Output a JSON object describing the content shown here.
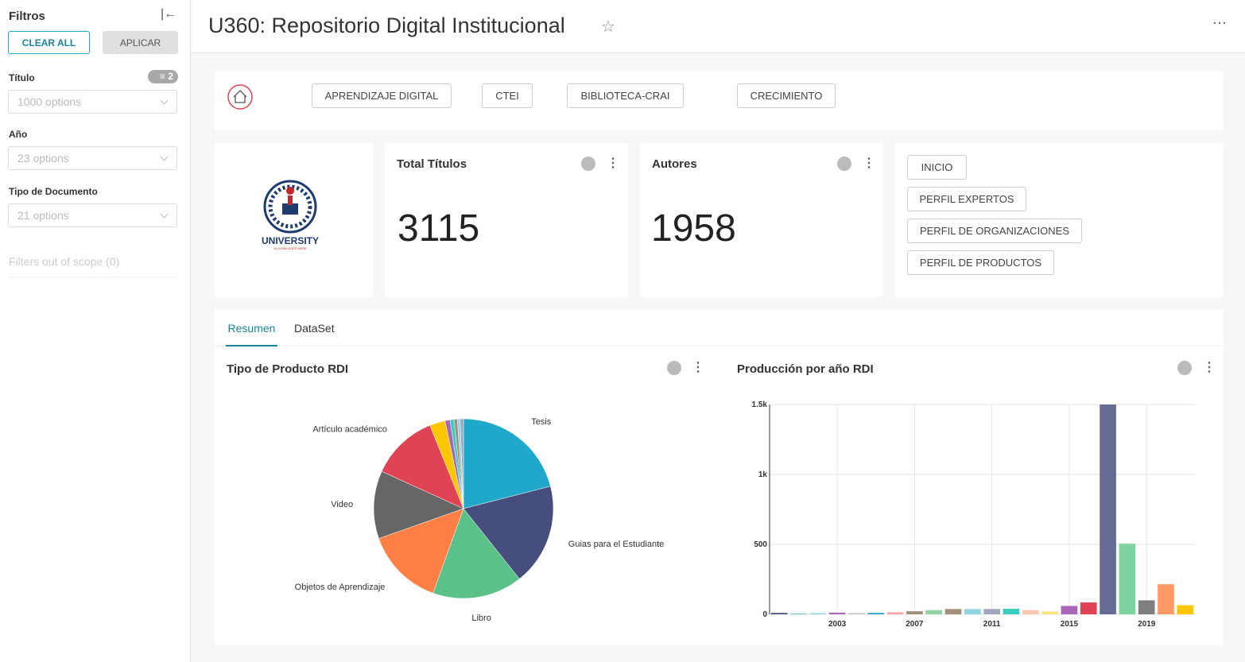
{
  "sidebar": {
    "title": "Filtros",
    "buttons": [
      "CLEAR ALL",
      "APLICAR"
    ],
    "filters": [
      {
        "label": "Título",
        "placeholder": "1000 options",
        "badge": 2
      },
      {
        "label": "Año",
        "placeholder": "23 options"
      },
      {
        "label": "Tipo de Documento",
        "placeholder": "21 options"
      }
    ],
    "out_of_scope": "Filters out of scope (0)"
  },
  "header": {
    "title": "U360: Repositorio Digital Institucional"
  },
  "nav": [
    "APRENDIZAJE DIGITAL",
    "CTEI",
    "BIBLIOTECA-CRAI",
    "CRECIMIENTO"
  ],
  "logo": {
    "name": "UNIVERSITY",
    "slogan": "SLOGAN GOES HERE"
  },
  "kpis": [
    {
      "title": "Total Títulos",
      "value": 3115
    },
    {
      "title": "Autores",
      "value": 1958
    }
  ],
  "links": [
    "INICIO",
    "PERFIL EXPERTOS",
    "PERFIL DE ORGANIZACIONES",
    "PERFIL DE PRODUCTOS"
  ],
  "tabs": [
    "Resumen",
    "DataSet"
  ],
  "chart_data": [
    {
      "type": "pie",
      "title": "Tipo de Producto RDI",
      "categories": [
        "Tesis",
        "Guias para el Estudiante",
        "Libro",
        "Objetos de Aprendizaje",
        "Video",
        "Artículo académico",
        null,
        null,
        null,
        null,
        null,
        null
      ],
      "values": [
        21,
        18.3,
        16.2,
        14.1,
        12.2,
        12.1,
        2.8,
        0.9,
        0.7,
        0.6,
        0.5,
        0.6
      ],
      "colors": [
        "#1fa8c9",
        "#454e7c",
        "#5ac189",
        "#ff7f44",
        "#666666",
        "#e04355",
        "#fcc700",
        "#a868b7",
        "#3cccc2",
        "#a38f79",
        "#8fd3e4",
        "#a1a6bd"
      ]
    },
    {
      "type": "bar",
      "title": "Producción por año RDI",
      "x": [
        2000,
        2001,
        2002,
        2003,
        2004,
        2005,
        2006,
        2007,
        2008,
        2009,
        2010,
        2011,
        2012,
        2013,
        2014,
        2015,
        2016,
        2017,
        2018,
        2019,
        2020,
        2021
      ],
      "series": [
        {
          "values": [
            10,
            5,
            8,
            12,
            10,
            10,
            15,
            22,
            30,
            38,
            38,
            38,
            40,
            30,
            20,
            60,
            85,
            1500,
            505,
            100,
            215,
            65
          ],
          "colors": [
            "#454e7c",
            "#5ac189",
            "#8fd3e4",
            "#a868b7",
            "#cccccc",
            "#1fa8c9",
            "#fea5ad",
            "#a38f79",
            "#8fd3a0",
            "#a38f79",
            "#8fd3e4",
            "#a1a6bd",
            "#3cccc2",
            "#ffc5b0",
            "#fde380",
            "#a868b7",
            "#e04355",
            "#666b94",
            "#7fd3a0",
            "#7f7f7f",
            "#ff9966",
            "#fcc700"
          ]
        }
      ],
      "xlim": [
        1999.5,
        2021.5
      ],
      "xticks": [
        2003,
        2007,
        2011,
        2015,
        2019
      ],
      "ylim": [
        0,
        1500
      ],
      "yticks": [
        0,
        500,
        {
          "value": 1000,
          "label": "1k"
        },
        {
          "value": 1500,
          "label": "1.5k"
        }
      ],
      "grid": true
    }
  ]
}
